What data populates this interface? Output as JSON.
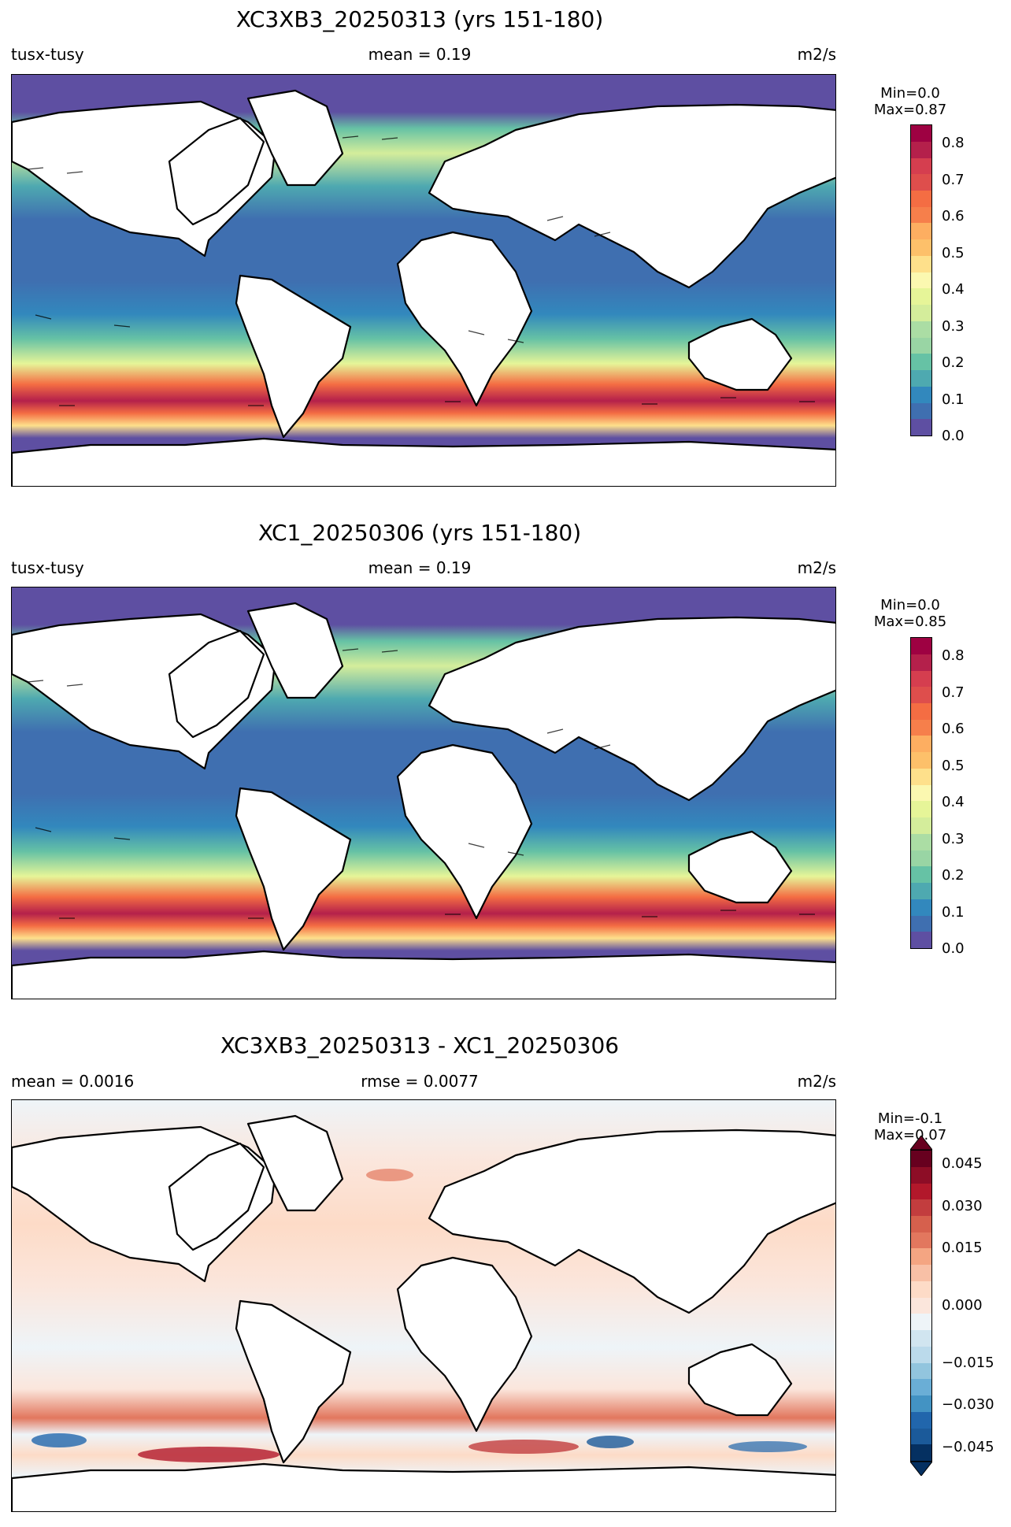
{
  "panels": [
    {
      "title": "XC3XB3_20250313 (yrs 151-180)",
      "left_label": "tusx-tusy",
      "center_label": "mean = 0.19",
      "right_label": "m2/s",
      "colorbar": {
        "min_text": "Min=0.0",
        "max_text": "Max=0.87",
        "ticks": [
          "0.0",
          "0.1",
          "0.2",
          "0.3",
          "0.4",
          "0.5",
          "0.6",
          "0.7",
          "0.8"
        ]
      }
    },
    {
      "title": "XC1_20250306 (yrs 151-180)",
      "left_label": "tusx-tusy",
      "center_label": "mean = 0.19",
      "right_label": "m2/s",
      "colorbar": {
        "min_text": "Min=0.0",
        "max_text": "Max=0.85",
        "ticks": [
          "0.0",
          "0.1",
          "0.2",
          "0.3",
          "0.4",
          "0.5",
          "0.6",
          "0.7",
          "0.8"
        ]
      }
    },
    {
      "title": "XC3XB3_20250313 - XC1_20250306",
      "left_label": "mean = 0.0016",
      "center_label": "rmse = 0.0077",
      "right_label": "m2/s",
      "colorbar": {
        "min_text": "Min=-0.1",
        "max_text": "Max=0.07",
        "ticks": [
          "−0.045",
          "−0.030",
          "−0.015",
          "0.000",
          "0.015",
          "0.030",
          "0.045"
        ]
      }
    }
  ],
  "colors": {
    "spectral": [
      "#5e4fa2",
      "#3f6fb0",
      "#3288bd",
      "#4ea9b0",
      "#66c2a5",
      "#99d5a4",
      "#abdda4",
      "#d4ed9b",
      "#e6f598",
      "#fbf8b0",
      "#fee08b",
      "#fdc06a",
      "#fdae61",
      "#f67f4b",
      "#f46d43",
      "#de4e4c",
      "#d53e4f",
      "#b4204b",
      "#9e0142"
    ],
    "diverging": [
      "#053061",
      "#1b5a9a",
      "#2166ac",
      "#4393c3",
      "#6aaed6",
      "#92c5de",
      "#bbdaeb",
      "#d1e5f0",
      "#eef4f8",
      "#fbe6dc",
      "#fddbc7",
      "#f8c0a6",
      "#f4a582",
      "#e2775e",
      "#d6604d",
      "#c23d3e",
      "#b2182b",
      "#8d0d26",
      "#67001f"
    ]
  }
}
